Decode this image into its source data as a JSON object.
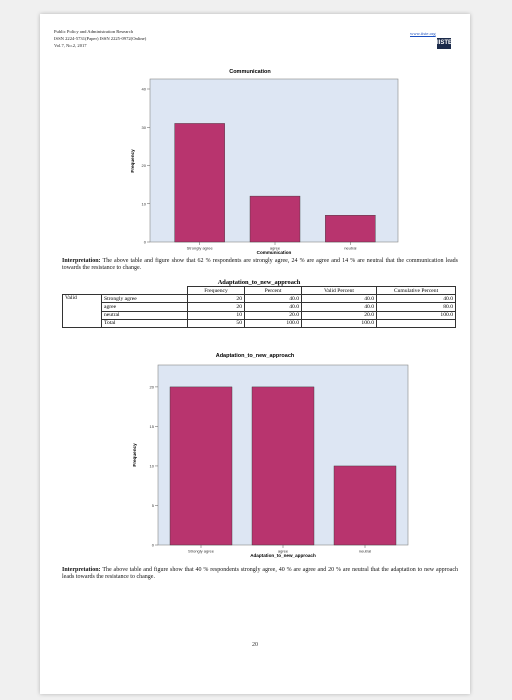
{
  "header": {
    "journal": "Public Policy and Administration Research",
    "issn": "ISSN 2224-5731(Paper) ISSN 2225-0972(Online)",
    "volume": "Vol.7, No.2, 2017",
    "website": "www.iiste.org",
    "logo_text": "IISTE"
  },
  "chart1": {
    "title": "Communication",
    "xlabel": "Communication",
    "ylabel": "Frequency"
  },
  "interp1": {
    "label": "Interpretation:",
    "text": "The above table and figure show that 62 % respondents are strongly agree, 24 % are agree and 14 % are neutral that the communication leads towards the resistance to change."
  },
  "table": {
    "title": "Adaptation_to_new_approach",
    "headers": [
      "Frequency",
      "Percent",
      "Valid Percent",
      "Cumulative Percent"
    ],
    "group_label": "Valid",
    "rows": [
      {
        "label": "Strongly agree",
        "frequency": "20",
        "percent": "40.0",
        "valid_percent": "40.0",
        "cumulative": "40.0"
      },
      {
        "label": "agree",
        "frequency": "20",
        "percent": "40.0",
        "valid_percent": "40.0",
        "cumulative": "80.0"
      },
      {
        "label": "neutral",
        "frequency": "10",
        "percent": "20.0",
        "valid_percent": "20.0",
        "cumulative": "100.0"
      },
      {
        "label": "Total",
        "frequency": "50",
        "percent": "100.0",
        "valid_percent": "100.0",
        "cumulative": ""
      }
    ]
  },
  "chart2": {
    "title": "Adaptation_to_new_approach",
    "xlabel": "Adaptation_to_new_approach",
    "ylabel": "Frequency"
  },
  "interp2": {
    "label": "Interpretation:",
    "text": "The above table and figure show that 40 % respondents strongly agree, 40 % are agree and 20 % are neutral that the adaptation to new approach leads towards the resistance to change."
  },
  "page_number": "20",
  "colors": {
    "bar": "#b8346e",
    "plot_bg": "#dde6f3",
    "plot_border": "#888888"
  },
  "chart_data": [
    {
      "type": "bar",
      "title": "Communication",
      "xlabel": "Communication",
      "ylabel": "Frequency",
      "categories": [
        "Strongly agree",
        "agree",
        "neutral"
      ],
      "values": [
        31,
        12,
        7
      ],
      "ylim": [
        0,
        40
      ],
      "yticks": [
        0,
        10,
        20,
        30,
        40
      ]
    },
    {
      "type": "bar",
      "title": "Adaptation_to_new_approach",
      "xlabel": "Adaptation_to_new_approach",
      "ylabel": "Frequency",
      "categories": [
        "Strongly agree",
        "agree",
        "neutral"
      ],
      "values": [
        20,
        20,
        10
      ],
      "ylim": [
        0,
        21
      ],
      "yticks": [
        0,
        5,
        10,
        15,
        20
      ]
    }
  ]
}
